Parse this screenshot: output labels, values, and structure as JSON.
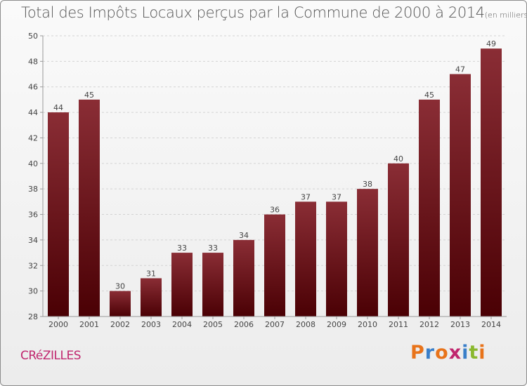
{
  "header": {
    "title": "Total des Impôts Locaux perçus par la Commune de 2000 à 2014",
    "unit": "(en milliers d'€)"
  },
  "footer": {
    "commune": "CRéZILLES",
    "logo": "Proxiti",
    "logo_colors": [
      "#e8731a",
      "#3a7fc9",
      "#e8731a",
      "#c0266e",
      "#3a7fc9",
      "#8ab82e",
      "#e8731a"
    ]
  },
  "colors": {
    "bar_top": "#8a2d35",
    "bar_bottom": "#4a0004",
    "grid": "#d3d3d3",
    "axis": "#999999"
  },
  "chart_data": {
    "type": "bar",
    "title": "Total des Impôts Locaux perçus par la Commune de 2000 à 2014",
    "xlabel": "",
    "ylabel": "",
    "categories": [
      "2000",
      "2001",
      "2002",
      "2003",
      "2004",
      "2005",
      "2006",
      "2007",
      "2008",
      "2009",
      "2010",
      "2011",
      "2012",
      "2013",
      "2014"
    ],
    "values": [
      44,
      45,
      30,
      31,
      33,
      33,
      34,
      36,
      37,
      37,
      38,
      40,
      45,
      47,
      49
    ],
    "ylim": [
      28,
      50
    ],
    "yticks": [
      28,
      30,
      32,
      34,
      36,
      38,
      40,
      42,
      44,
      46,
      48,
      50
    ],
    "grid": true
  }
}
